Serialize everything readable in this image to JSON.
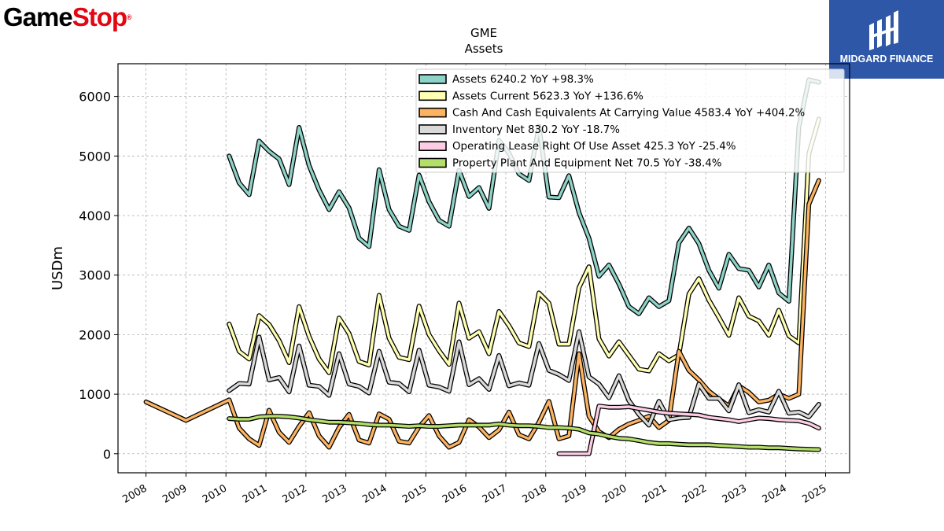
{
  "branding": {
    "left_logo_text_black": "Game",
    "left_logo_text_red": "Stop",
    "left_logo_mark": "®",
    "left_logo_red_color": "#e30613",
    "right_logo_text": "MIDGARD FINANCE",
    "right_logo_bg": "#2e57a8"
  },
  "chart_data": {
    "type": "line",
    "title": "GME",
    "subtitle": "Assets",
    "xlabel": "",
    "ylabel": "USDm",
    "xlim": [
      2007.3,
      2025.6
    ],
    "ylim": [
      -320,
      6550
    ],
    "x_ticks": [
      "2008",
      "2009",
      "2010",
      "2011",
      "2012",
      "2013",
      "2014",
      "2015",
      "2016",
      "2017",
      "2018",
      "2019",
      "2020",
      "2021",
      "2022",
      "2023",
      "2024",
      "2025"
    ],
    "y_ticks": [
      0,
      1000,
      2000,
      3000,
      4000,
      5000,
      6000
    ],
    "grid": true,
    "legend_position": "top-right",
    "series": [
      {
        "name": "Assets",
        "legend": "Assets  6240.2 YoY +98.3%",
        "color": "#8dd3c7",
        "x": [
          2010.08,
          2010.33,
          2010.58,
          2010.83,
          2011.08,
          2011.33,
          2011.58,
          2011.83,
          2012.08,
          2012.33,
          2012.58,
          2012.83,
          2013.08,
          2013.33,
          2013.58,
          2013.83,
          2014.08,
          2014.33,
          2014.58,
          2014.83,
          2015.08,
          2015.33,
          2015.58,
          2015.83,
          2016.08,
          2016.33,
          2016.58,
          2016.83,
          2017.08,
          2017.33,
          2017.58,
          2017.83,
          2018.08,
          2018.33,
          2018.58,
          2018.83,
          2019.08,
          2019.33,
          2019.58,
          2019.83,
          2020.08,
          2020.33,
          2020.58,
          2020.83,
          2021.08,
          2021.33,
          2021.58,
          2021.83,
          2022.08,
          2022.33,
          2022.58,
          2022.83,
          2023.08,
          2023.33,
          2023.58,
          2023.83,
          2024.08,
          2024.33,
          2024.58,
          2024.83
        ],
        "y": [
          5000,
          4550,
          4350,
          5250,
          5080,
          4950,
          4520,
          5480,
          4840,
          4430,
          4100,
          4400,
          4130,
          3620,
          3480,
          4770,
          4100,
          3820,
          3750,
          4680,
          4230,
          3920,
          3820,
          4760,
          4320,
          4470,
          4120,
          5260,
          5050,
          4700,
          4590,
          5500,
          4310,
          4300,
          4670,
          4050,
          3620,
          2980,
          3170,
          2850,
          2470,
          2350,
          2620,
          2470,
          2570,
          3540,
          3790,
          3530,
          3080,
          2780,
          3350,
          3110,
          3080,
          2800,
          3170,
          2700,
          2560,
          5490,
          6280,
          6240
        ]
      },
      {
        "name": "Assets Current",
        "legend": "Assets Current  5623.3 YoY +136.6%",
        "color": "#ffffb3",
        "x": [
          2010.08,
          2010.33,
          2010.58,
          2010.83,
          2011.08,
          2011.33,
          2011.58,
          2011.83,
          2012.08,
          2012.33,
          2012.58,
          2012.83,
          2013.08,
          2013.33,
          2013.58,
          2013.83,
          2014.08,
          2014.33,
          2014.58,
          2014.83,
          2015.08,
          2015.33,
          2015.58,
          2015.83,
          2016.08,
          2016.33,
          2016.58,
          2016.83,
          2017.08,
          2017.33,
          2017.58,
          2017.83,
          2018.08,
          2018.33,
          2018.58,
          2018.83,
          2019.08,
          2019.33,
          2019.58,
          2019.83,
          2020.08,
          2020.33,
          2020.58,
          2020.83,
          2021.08,
          2021.33,
          2021.58,
          2021.83,
          2022.08,
          2022.33,
          2022.58,
          2022.83,
          2023.08,
          2023.33,
          2023.58,
          2023.83,
          2024.08,
          2024.33,
          2024.58,
          2024.83
        ],
        "y": [
          2180,
          1720,
          1590,
          2320,
          2170,
          1900,
          1530,
          2470,
          1970,
          1590,
          1360,
          2280,
          2020,
          1550,
          1490,
          2660,
          1940,
          1620,
          1580,
          2480,
          2000,
          1730,
          1500,
          2530,
          1940,
          2050,
          1680,
          2390,
          2150,
          1860,
          1800,
          2700,
          2530,
          1840,
          1840,
          2790,
          3140,
          1930,
          1640,
          1880,
          1650,
          1420,
          1390,
          1680,
          1560,
          1660,
          2680,
          2940,
          2580,
          2290,
          1990,
          2620,
          2310,
          2230,
          1990,
          2410,
          1980,
          1860,
          5040,
          5620
        ]
      },
      {
        "name": "Cash And Cash Equivalents At Carrying Value",
        "legend": "Cash And Cash Equivalents At Carrying Value  4583.4 YoY +404.2%",
        "color": "#fdb462",
        "x": [
          2008.0,
          2009.0,
          2010.08,
          2010.33,
          2010.58,
          2010.83,
          2011.08,
          2011.33,
          2011.58,
          2011.83,
          2012.08,
          2012.33,
          2012.58,
          2012.83,
          2013.08,
          2013.33,
          2013.58,
          2013.83,
          2014.08,
          2014.33,
          2014.58,
          2014.83,
          2015.08,
          2015.33,
          2015.58,
          2015.83,
          2016.08,
          2016.33,
          2016.58,
          2016.83,
          2017.08,
          2017.33,
          2017.58,
          2017.83,
          2018.08,
          2018.33,
          2018.58,
          2018.83,
          2019.08,
          2019.33,
          2019.58,
          2019.83,
          2020.08,
          2020.33,
          2020.58,
          2020.83,
          2021.08,
          2021.33,
          2021.58,
          2021.83,
          2022.08,
          2022.33,
          2022.58,
          2022.83,
          2023.08,
          2023.33,
          2023.58,
          2023.83,
          2024.08,
          2024.33,
          2024.58,
          2024.83
        ],
        "y": [
          870,
          560,
          905,
          430,
          250,
          140,
          730,
          360,
          190,
          460,
          690,
          300,
          110,
          440,
          660,
          230,
          180,
          670,
          580,
          210,
          180,
          450,
          640,
          300,
          110,
          190,
          570,
          450,
          270,
          400,
          700,
          320,
          250,
          530,
          880,
          250,
          300,
          1680,
          630,
          370,
          270,
          410,
          500,
          560,
          630,
          440,
          560,
          1720,
          1400,
          1240,
          1050,
          920,
          800,
          1140,
          1030,
          870,
          900,
          1000,
          930,
          1000,
          4190,
          4590
        ]
      },
      {
        "name": "Inventory Net",
        "legend": "Inventory Net  830.2 YoY -18.7%",
        "color": "#d9d9d9",
        "x": [
          2010.08,
          2010.33,
          2010.58,
          2010.83,
          2011.08,
          2011.33,
          2011.58,
          2011.83,
          2012.08,
          2012.33,
          2012.58,
          2012.83,
          2013.08,
          2013.33,
          2013.58,
          2013.83,
          2014.08,
          2014.33,
          2014.58,
          2014.83,
          2015.08,
          2015.33,
          2015.58,
          2015.83,
          2016.08,
          2016.33,
          2016.58,
          2016.83,
          2017.08,
          2017.33,
          2017.58,
          2017.83,
          2018.08,
          2018.33,
          2018.58,
          2018.83,
          2019.08,
          2019.33,
          2019.58,
          2019.83,
          2020.08,
          2020.33,
          2020.58,
          2020.83,
          2021.08,
          2021.33,
          2021.58,
          2021.83,
          2022.08,
          2022.33,
          2022.58,
          2022.83,
          2023.08,
          2023.33,
          2023.58,
          2023.83,
          2024.08,
          2024.33,
          2024.58,
          2024.83
        ],
        "y": [
          1060,
          1180,
          1170,
          1960,
          1240,
          1280,
          1040,
          1810,
          1150,
          1130,
          980,
          1680,
          1170,
          1130,
          1020,
          1720,
          1200,
          1180,
          1040,
          1740,
          1150,
          1120,
          1050,
          1880,
          1160,
          1260,
          1080,
          1650,
          1140,
          1190,
          1150,
          1850,
          1400,
          1330,
          1230,
          2050,
          1290,
          1170,
          940,
          1310,
          890,
          660,
          480,
          880,
          570,
          600,
          610,
          1170,
          930,
          930,
          720,
          1160,
          690,
          740,
          700,
          1050,
          680,
          700,
          620,
          830
        ]
      },
      {
        "name": "Operating Lease Right Of Use Asset",
        "legend": "Operating Lease Right Of Use Asset  425.3 YoY -25.4%",
        "color": "#fccde5",
        "x": [
          2018.33,
          2018.58,
          2018.83,
          2019.08,
          2019.33,
          2019.58,
          2019.83,
          2020.08,
          2020.33,
          2020.58,
          2020.83,
          2021.08,
          2021.33,
          2021.58,
          2021.83,
          2022.08,
          2022.33,
          2022.58,
          2022.83,
          2023.08,
          2023.33,
          2023.58,
          2023.83,
          2024.08,
          2024.33,
          2024.58,
          2024.83
        ],
        "y": [
          0,
          0,
          0,
          0,
          800,
          780,
          780,
          790,
          760,
          730,
          700,
          680,
          670,
          660,
          650,
          610,
          590,
          570,
          540,
          570,
          600,
          590,
          570,
          560,
          550,
          510,
          430
        ]
      },
      {
        "name": "Property Plant And Equipment Net",
        "legend": "Property Plant And Equipment Net  70.5 YoY -38.4%",
        "color": "#b3de69",
        "x": [
          2010.08,
          2010.33,
          2010.58,
          2010.83,
          2011.08,
          2011.33,
          2011.58,
          2011.83,
          2012.08,
          2012.33,
          2012.58,
          2012.83,
          2013.08,
          2013.33,
          2013.58,
          2013.83,
          2014.08,
          2014.33,
          2014.58,
          2014.83,
          2015.08,
          2015.33,
          2015.58,
          2015.83,
          2016.08,
          2016.33,
          2016.58,
          2016.83,
          2017.08,
          2017.33,
          2017.58,
          2017.83,
          2018.08,
          2018.33,
          2018.58,
          2018.83,
          2019.08,
          2019.33,
          2019.58,
          2019.83,
          2020.08,
          2020.33,
          2020.58,
          2020.83,
          2021.08,
          2021.33,
          2021.58,
          2021.83,
          2022.08,
          2022.33,
          2022.58,
          2022.83,
          2023.08,
          2023.33,
          2023.58,
          2023.83,
          2024.08,
          2024.33,
          2024.58,
          2024.83
        ],
        "y": [
          590,
          580,
          580,
          620,
          630,
          630,
          620,
          600,
          570,
          550,
          530,
          530,
          520,
          510,
          490,
          480,
          480,
          470,
          460,
          470,
          460,
          460,
          470,
          480,
          480,
          480,
          480,
          500,
          480,
          470,
          470,
          460,
          440,
          440,
          430,
          410,
          350,
          330,
          290,
          260,
          250,
          220,
          190,
          170,
          170,
          160,
          150,
          150,
          150,
          140,
          130,
          120,
          110,
          110,
          100,
          100,
          90,
          80,
          75,
          70
        ]
      }
    ]
  }
}
